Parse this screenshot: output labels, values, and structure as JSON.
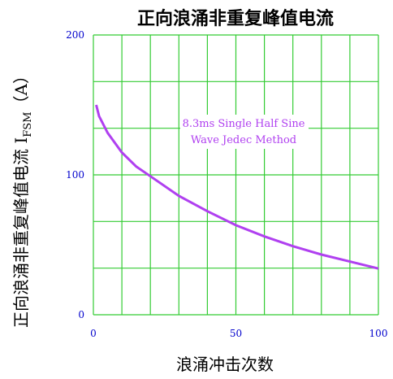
{
  "chart_data": {
    "type": "line",
    "title": "正向浪涌非重复峰值电流",
    "xlabel": "浪涌冲击次数",
    "ylabel_main": "正向浪涌非重复峰值电流 I",
    "ylabel_sub": "FSM",
    "ylabel_unit": "（A）",
    "xlim": [
      0,
      100
    ],
    "ylim": [
      0,
      200
    ],
    "x_ticks": [
      "0",
      "50",
      "100"
    ],
    "y_ticks": [
      "0",
      "100",
      "200"
    ],
    "grid": true,
    "annotation": [
      "8.3ms Single Half Sine",
      "Wave Jedec Method"
    ],
    "series": [
      {
        "x": [
          1,
          2,
          5,
          10,
          15,
          20,
          30,
          40,
          50,
          60,
          70,
          80,
          90,
          100
        ],
        "y": [
          150,
          142,
          130,
          116,
          106,
          99,
          85,
          74,
          64,
          56,
          49,
          43,
          38,
          33
        ]
      }
    ],
    "colors": {
      "line": "#b040f0",
      "grid": "#33cc33",
      "axis_text": "#0000cc",
      "annotation": "#b040f0"
    }
  }
}
